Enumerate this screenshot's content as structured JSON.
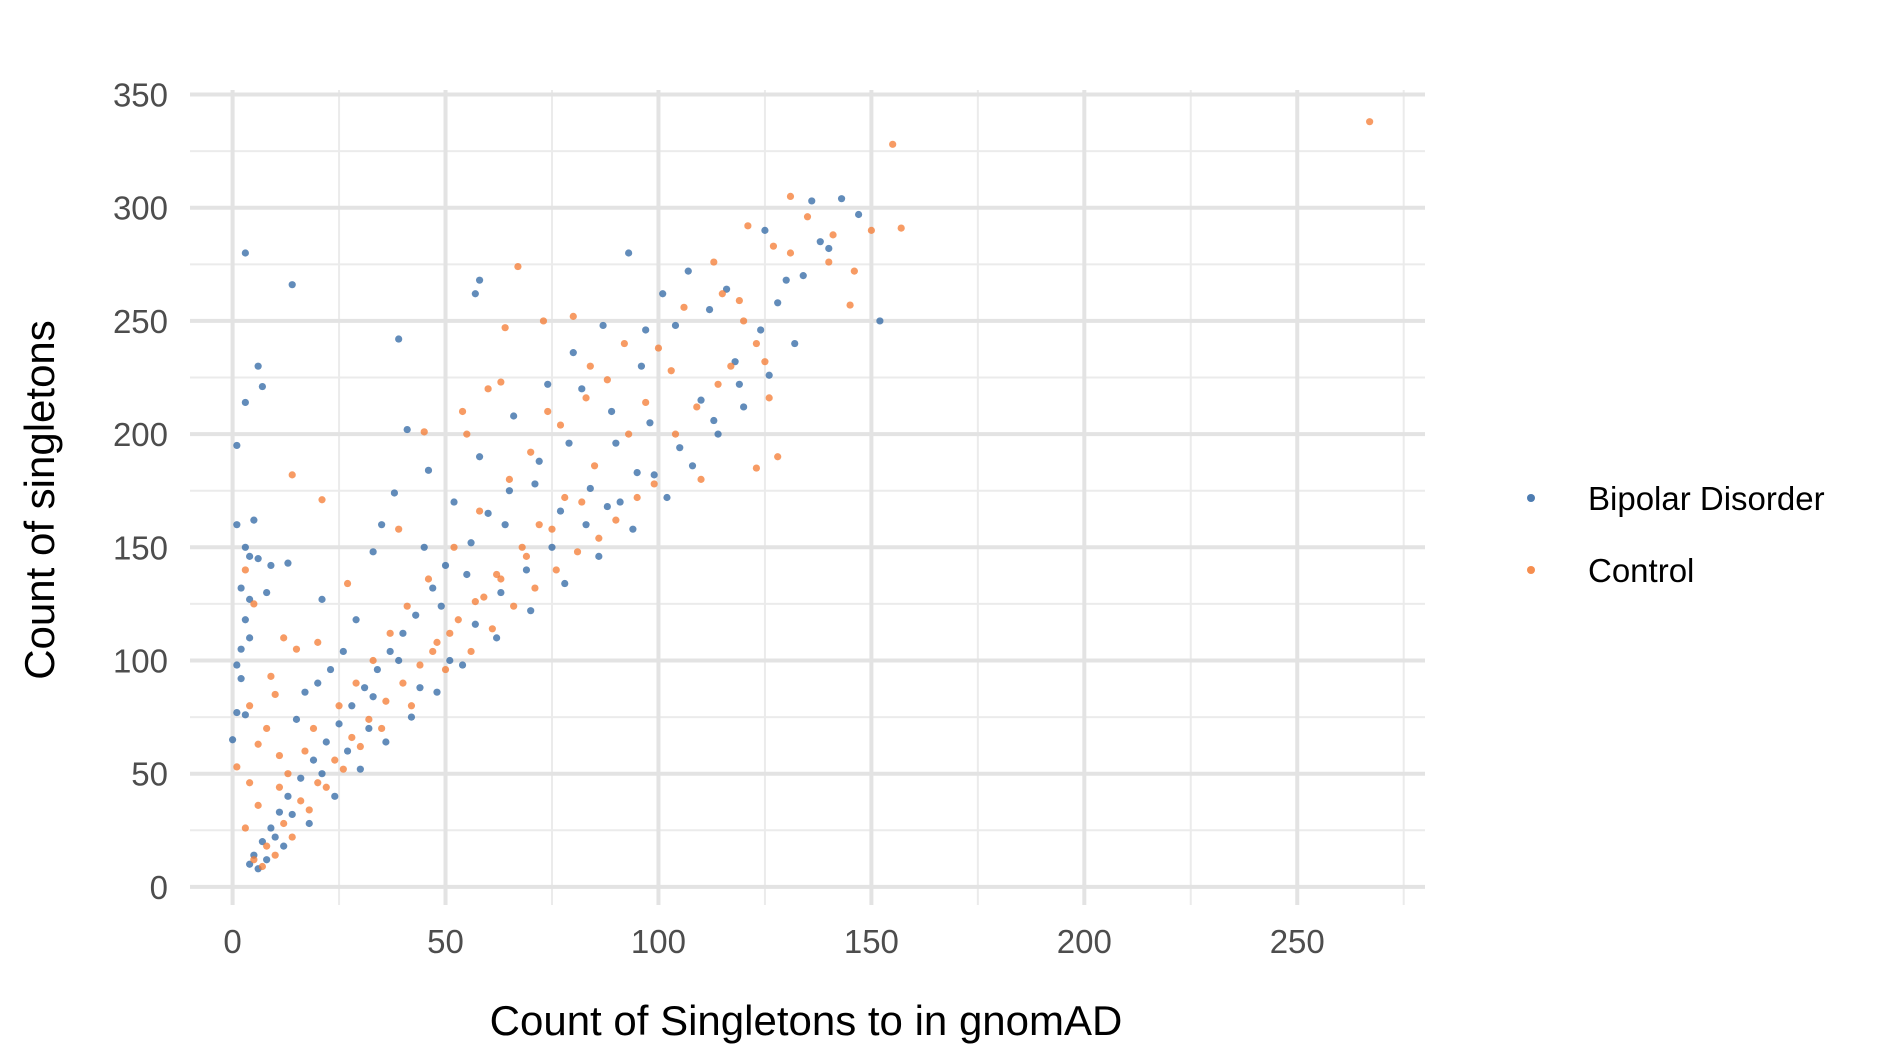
{
  "chart_data": {
    "type": "scatter",
    "title": "",
    "xlabel": "Count of Singletons to in gnomAD",
    "ylabel": "Count of singletons",
    "xlim": [
      -10,
      280
    ],
    "ylim": [
      -8,
      352
    ],
    "x_ticks": [
      0,
      50,
      100,
      150,
      200,
      250
    ],
    "y_ticks": [
      0,
      50,
      100,
      150,
      200,
      250,
      300,
      350
    ],
    "x_tick_labels": [
      "0",
      "50",
      "100",
      "150",
      "200",
      "250"
    ],
    "y_tick_labels": [
      "0",
      "50",
      "100",
      "150",
      "200",
      "250",
      "300",
      "350"
    ],
    "grid": true,
    "legend_position": "right",
    "series": [
      {
        "name": "Bipolar Disorder",
        "color": "#2e65a3",
        "points": [
          [
            3,
            280
          ],
          [
            14,
            266
          ],
          [
            58,
            268
          ],
          [
            57,
            262
          ],
          [
            39,
            242
          ],
          [
            93,
            280
          ],
          [
            152,
            250
          ],
          [
            6,
            230
          ],
          [
            7,
            221
          ],
          [
            3,
            214
          ],
          [
            1,
            195
          ],
          [
            5,
            162
          ],
          [
            1,
            160
          ],
          [
            3,
            150
          ],
          [
            4,
            146
          ],
          [
            6,
            145
          ],
          [
            2,
            132
          ],
          [
            4,
            127
          ],
          [
            8,
            130
          ],
          [
            13,
            143
          ],
          [
            3,
            118
          ],
          [
            1,
            98
          ],
          [
            2,
            92
          ],
          [
            1,
            77
          ],
          [
            3,
            76
          ],
          [
            0,
            65
          ],
          [
            4,
            110
          ],
          [
            2,
            105
          ],
          [
            9,
            142
          ],
          [
            21,
            127
          ],
          [
            33,
            148
          ],
          [
            143,
            304
          ],
          [
            136,
            303
          ],
          [
            147,
            297
          ],
          [
            125,
            290
          ],
          [
            138,
            285
          ],
          [
            130,
            268
          ],
          [
            112,
            255
          ],
          [
            107,
            272
          ],
          [
            101,
            262
          ],
          [
            97,
            246
          ],
          [
            118,
            232
          ],
          [
            110,
            215
          ],
          [
            98,
            205
          ],
          [
            95,
            183
          ],
          [
            90,
            196
          ],
          [
            82,
            220
          ],
          [
            84,
            176
          ],
          [
            88,
            168
          ],
          [
            77,
            166
          ],
          [
            72,
            188
          ],
          [
            65,
            175
          ],
          [
            60,
            165
          ],
          [
            56,
            152
          ],
          [
            50,
            142
          ],
          [
            47,
            132
          ],
          [
            43,
            120
          ],
          [
            40,
            112
          ],
          [
            37,
            104
          ],
          [
            34,
            96
          ],
          [
            31,
            88
          ],
          [
            28,
            80
          ],
          [
            25,
            72
          ],
          [
            22,
            64
          ],
          [
            19,
            56
          ],
          [
            16,
            48
          ],
          [
            13,
            40
          ],
          [
            11,
            33
          ],
          [
            9,
            26
          ],
          [
            7,
            20
          ],
          [
            5,
            14
          ],
          [
            4,
            10
          ],
          [
            6,
            8
          ],
          [
            8,
            12
          ],
          [
            12,
            18
          ],
          [
            18,
            28
          ],
          [
            24,
            40
          ],
          [
            30,
            52
          ],
          [
            36,
            64
          ],
          [
            42,
            75
          ],
          [
            48,
            86
          ],
          [
            54,
            98
          ],
          [
            62,
            110
          ],
          [
            70,
            122
          ],
          [
            78,
            134
          ],
          [
            86,
            146
          ],
          [
            94,
            158
          ],
          [
            102,
            172
          ],
          [
            108,
            186
          ],
          [
            114,
            200
          ],
          [
            120,
            212
          ],
          [
            126,
            226
          ],
          [
            132,
            240
          ],
          [
            45,
            150
          ],
          [
            52,
            170
          ],
          [
            58,
            190
          ],
          [
            66,
            208
          ],
          [
            74,
            222
          ],
          [
            80,
            236
          ],
          [
            87,
            248
          ],
          [
            41,
            202
          ],
          [
            46,
            184
          ],
          [
            38,
            174
          ],
          [
            35,
            160
          ],
          [
            29,
            118
          ],
          [
            26,
            104
          ],
          [
            20,
            90
          ],
          [
            15,
            74
          ],
          [
            17,
            86
          ],
          [
            23,
            96
          ],
          [
            27,
            60
          ],
          [
            32,
            70
          ],
          [
            44,
            88
          ],
          [
            51,
            100
          ],
          [
            57,
            116
          ],
          [
            63,
            130
          ],
          [
            69,
            140
          ],
          [
            75,
            150
          ],
          [
            83,
            160
          ],
          [
            91,
            170
          ],
          [
            99,
            182
          ],
          [
            105,
            194
          ],
          [
            113,
            206
          ],
          [
            119,
            222
          ],
          [
            124,
            246
          ],
          [
            128,
            258
          ],
          [
            134,
            270
          ],
          [
            140,
            282
          ],
          [
            116,
            264
          ],
          [
            104,
            248
          ],
          [
            96,
            230
          ],
          [
            89,
            210
          ],
          [
            79,
            196
          ],
          [
            71,
            178
          ],
          [
            64,
            160
          ],
          [
            55,
            138
          ],
          [
            49,
            124
          ],
          [
            39,
            100
          ],
          [
            33,
            84
          ],
          [
            21,
            50
          ],
          [
            14,
            32
          ],
          [
            10,
            22
          ]
        ]
      },
      {
        "name": "Control",
        "color": "#f47a30",
        "points": [
          [
            267,
            338
          ],
          [
            155,
            328
          ],
          [
            131,
            305
          ],
          [
            157,
            291
          ],
          [
            150,
            290
          ],
          [
            146,
            272
          ],
          [
            145,
            257
          ],
          [
            127,
            283
          ],
          [
            140,
            276
          ],
          [
            119,
            259
          ],
          [
            67,
            274
          ],
          [
            125,
            232
          ],
          [
            117,
            230
          ],
          [
            123,
            240
          ],
          [
            126,
            216
          ],
          [
            128,
            190
          ],
          [
            123,
            185
          ],
          [
            110,
            180
          ],
          [
            80,
            252
          ],
          [
            73,
            250
          ],
          [
            64,
            247
          ],
          [
            63,
            223
          ],
          [
            60,
            220
          ],
          [
            54,
            210
          ],
          [
            45,
            201
          ],
          [
            55,
            200
          ],
          [
            14,
            182
          ],
          [
            21,
            171
          ],
          [
            3,
            140
          ],
          [
            5,
            125
          ],
          [
            12,
            110
          ],
          [
            15,
            105
          ],
          [
            9,
            93
          ],
          [
            4,
            80
          ],
          [
            10,
            85
          ],
          [
            6,
            63
          ],
          [
            1,
            53
          ],
          [
            3,
            26
          ],
          [
            20,
            108
          ],
          [
            27,
            134
          ],
          [
            39,
            158
          ],
          [
            74,
            210
          ],
          [
            84,
            230
          ],
          [
            92,
            240
          ],
          [
            100,
            238
          ],
          [
            106,
            256
          ],
          [
            113,
            276
          ],
          [
            121,
            292
          ],
          [
            135,
            296
          ],
          [
            141,
            288
          ],
          [
            131,
            280
          ],
          [
            115,
            262
          ],
          [
            103,
            228
          ],
          [
            97,
            214
          ],
          [
            93,
            200
          ],
          [
            85,
            186
          ],
          [
            78,
            172
          ],
          [
            72,
            160
          ],
          [
            68,
            150
          ],
          [
            62,
            138
          ],
          [
            59,
            128
          ],
          [
            53,
            118
          ],
          [
            48,
            108
          ],
          [
            44,
            98
          ],
          [
            40,
            90
          ],
          [
            36,
            82
          ],
          [
            32,
            74
          ],
          [
            28,
            66
          ],
          [
            24,
            56
          ],
          [
            20,
            46
          ],
          [
            16,
            38
          ],
          [
            12,
            28
          ],
          [
            8,
            18
          ],
          [
            5,
            12
          ],
          [
            7,
            9
          ],
          [
            10,
            14
          ],
          [
            14,
            22
          ],
          [
            18,
            34
          ],
          [
            22,
            44
          ],
          [
            26,
            52
          ],
          [
            30,
            62
          ],
          [
            35,
            70
          ],
          [
            42,
            80
          ],
          [
            50,
            96
          ],
          [
            56,
            104
          ],
          [
            61,
            114
          ],
          [
            66,
            124
          ],
          [
            71,
            132
          ],
          [
            76,
            140
          ],
          [
            81,
            148
          ],
          [
            86,
            154
          ],
          [
            90,
            162
          ],
          [
            95,
            172
          ],
          [
            99,
            178
          ],
          [
            104,
            200
          ],
          [
            109,
            212
          ],
          [
            114,
            222
          ],
          [
            120,
            250
          ],
          [
            58,
            166
          ],
          [
            52,
            150
          ],
          [
            46,
            136
          ],
          [
            41,
            124
          ],
          [
            37,
            112
          ],
          [
            33,
            100
          ],
          [
            29,
            90
          ],
          [
            25,
            80
          ],
          [
            19,
            70
          ],
          [
            17,
            60
          ],
          [
            13,
            50
          ],
          [
            11,
            44
          ],
          [
            6,
            36
          ],
          [
            8,
            70
          ],
          [
            11,
            58
          ],
          [
            4,
            46
          ],
          [
            65,
            180
          ],
          [
            70,
            192
          ],
          [
            77,
            204
          ],
          [
            83,
            216
          ],
          [
            88,
            224
          ],
          [
            82,
            170
          ],
          [
            75,
            158
          ],
          [
            69,
            146
          ],
          [
            63,
            136
          ],
          [
            57,
            126
          ],
          [
            51,
            112
          ],
          [
            47,
            104
          ]
        ]
      }
    ]
  }
}
